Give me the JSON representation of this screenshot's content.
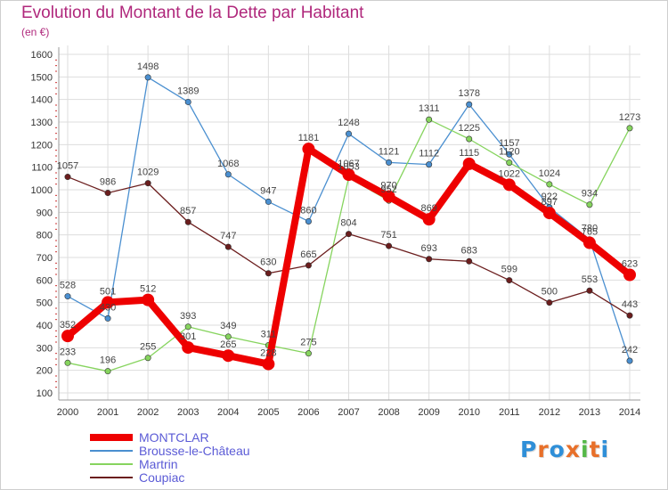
{
  "title": "Evolution du Montant de la Dette par Habitant",
  "subtitle": "(en €)",
  "logo": {
    "text": "Proxiti",
    "letter_colors": [
      "#2f8fd8",
      "#e8702a",
      "#2f8fd8",
      "#e8702a",
      "#55b848",
      "#e8702a",
      "#2f8fd8"
    ]
  },
  "chart_data": {
    "type": "line",
    "title": "Evolution du Montant de la Dette par Habitant",
    "subtitle": "(en €)",
    "x": [
      "2000",
      "2001",
      "2002",
      "2003",
      "2004",
      "2005",
      "2006",
      "2007",
      "2008",
      "2009",
      "2010",
      "2011",
      "2012",
      "2013",
      "2014"
    ],
    "y_ticks": [
      100,
      200,
      300,
      400,
      500,
      600,
      700,
      800,
      900,
      1000,
      1100,
      1200,
      1300,
      1400,
      1500,
      1600
    ],
    "ylim": [
      100,
      1600
    ],
    "grid": true,
    "legend_position": "bottom-left",
    "series": [
      {
        "name": "MONTCLAR",
        "color": "#ee0000",
        "values": [
          352,
          501,
          512,
          301,
          265,
          228,
          1181,
          1067,
          970,
          869,
          1115,
          1022,
          897,
          765,
          623
        ]
      },
      {
        "name": "Brousse-le-Château",
        "color": "#4a8fd0",
        "values": [
          528,
          430,
          1498,
          1389,
          1068,
          947,
          860,
          1248,
          1121,
          1112,
          1378,
          1157,
          922,
          780,
          242
        ]
      },
      {
        "name": "Martrin",
        "color": "#86d45e",
        "values": [
          233,
          196,
          255,
          393,
          349,
          311,
          275,
          1053,
          952,
          1311,
          1225,
          1120,
          1024,
          934,
          1273
        ]
      },
      {
        "name": "Coupiac",
        "color": "#6b1d1d",
        "values": [
          1057,
          986,
          1029,
          857,
          747,
          630,
          665,
          804,
          751,
          693,
          683,
          599,
          500,
          553,
          443
        ]
      }
    ]
  }
}
